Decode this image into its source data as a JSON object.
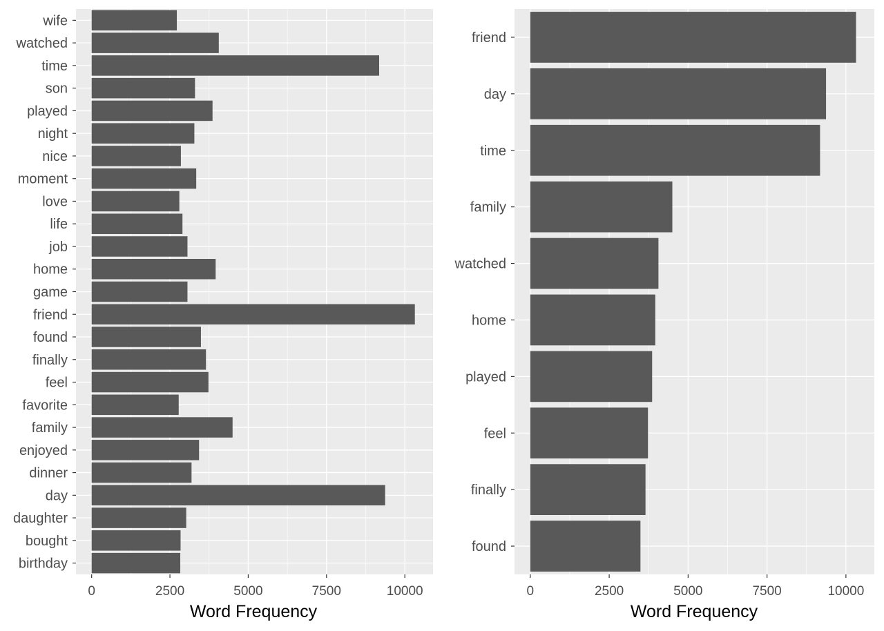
{
  "chart_data": [
    {
      "type": "bar",
      "orientation": "horizontal",
      "categories": [
        "wife",
        "watched",
        "time",
        "son",
        "played",
        "night",
        "nice",
        "moment",
        "love",
        "life",
        "job",
        "home",
        "game",
        "friend",
        "found",
        "finally",
        "feel",
        "favorite",
        "family",
        "enjoyed",
        "dinner",
        "day",
        "daughter",
        "bought",
        "birthday"
      ],
      "values": [
        2720,
        4060,
        9180,
        3300,
        3860,
        3280,
        2850,
        3340,
        2800,
        2900,
        3060,
        3960,
        3060,
        10320,
        3490,
        3650,
        3730,
        2780,
        4500,
        3430,
        3190,
        9370,
        3020,
        2840,
        2830
      ],
      "xlabel": "Word Frequency",
      "ylabel": "",
      "xlim": [
        -500,
        10900
      ],
      "xticks": [
        0,
        2500,
        5000,
        7500,
        10000
      ],
      "grid": true,
      "bar_color": "#595959",
      "panel_color": "#ebebeb",
      "grid_color": "#ffffff"
    },
    {
      "type": "bar",
      "orientation": "horizontal",
      "categories": [
        "friend",
        "day",
        "time",
        "family",
        "watched",
        "home",
        "played",
        "feel",
        "finally",
        "found"
      ],
      "values": [
        10320,
        9370,
        9180,
        4500,
        4060,
        3960,
        3860,
        3730,
        3650,
        3490
      ],
      "xlabel": "Word Frequency",
      "ylabel": "",
      "xlim": [
        -500,
        10900
      ],
      "xticks": [
        0,
        2500,
        5000,
        7500,
        10000
      ],
      "grid": true,
      "bar_color": "#595959",
      "panel_color": "#ebebeb",
      "grid_color": "#ffffff"
    }
  ]
}
